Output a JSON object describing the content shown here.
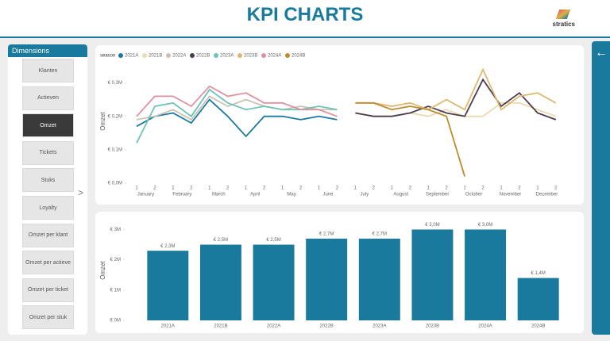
{
  "header": {
    "title": "KPI CHARTS",
    "logo": "stratics"
  },
  "sidebar": {
    "title": "Dimensions",
    "buttons": [
      "Klanten",
      "Actieven",
      "Omzet",
      "Tickets",
      "Stuks",
      "Loyalty",
      "Omzet per klant",
      "Omzet per actieve",
      "Omzet per ticket",
      "Omzet per stuk"
    ],
    "selected": "Omzet"
  },
  "chart_data": [
    {
      "type": "line",
      "legend_title": "season",
      "y_label": "Omzet",
      "categories": [
        "1",
        "2",
        "1",
        "2",
        "1",
        "2",
        "1",
        "2",
        "1",
        "2",
        "1",
        "2",
        "1",
        "2",
        "1",
        "2",
        "1",
        "2",
        "1",
        "2",
        "1",
        "2",
        "1",
        "2"
      ],
      "months": [
        "January",
        "February",
        "March",
        "April",
        "May",
        "June",
        "July",
        "August",
        "September",
        "October",
        "November",
        "December"
      ],
      "ylim": [
        0,
        0.37
      ],
      "yticks": [
        {
          "value": 0,
          "label": "€ 0,0M"
        },
        {
          "value": 0.1,
          "label": "€ 0,1M"
        },
        {
          "value": 0.2,
          "label": "€ 0,2M"
        },
        {
          "value": 0.3,
          "label": "€ 0,3M"
        }
      ],
      "series": [
        {
          "name": "2021A",
          "color": "#1a7a9e",
          "values": [
            0.17,
            0.2,
            0.21,
            0.18,
            0.25,
            0.2,
            0.14,
            0.2,
            0.2,
            0.19,
            0.2,
            0.19,
            null,
            null,
            null,
            null,
            null,
            null,
            null,
            null,
            null,
            null,
            null,
            null
          ]
        },
        {
          "name": "2021B",
          "color": "#e8dcb0",
          "values": [
            null,
            null,
            null,
            null,
            null,
            null,
            null,
            null,
            null,
            null,
            null,
            null,
            0.21,
            0.2,
            0.2,
            0.21,
            0.2,
            0.22,
            0.2,
            0.2,
            0.24,
            0.24,
            0.22,
            0.2
          ]
        },
        {
          "name": "2022A",
          "color": "#cbc2b4",
          "values": [
            0.19,
            0.2,
            0.22,
            0.19,
            0.26,
            0.23,
            0.25,
            0.23,
            0.22,
            0.23,
            0.22,
            0.22,
            null,
            null,
            null,
            null,
            null,
            null,
            null,
            null,
            null,
            null,
            null,
            null
          ]
        },
        {
          "name": "2022B",
          "color": "#4b3c4e",
          "values": [
            null,
            null,
            null,
            null,
            null,
            null,
            null,
            null,
            null,
            null,
            null,
            null,
            0.21,
            0.2,
            0.2,
            0.21,
            0.23,
            0.21,
            0.2,
            0.31,
            0.23,
            0.27,
            0.21,
            0.19
          ]
        },
        {
          "name": "2023A",
          "color": "#6cc3b5",
          "values": [
            0.12,
            0.23,
            0.24,
            0.2,
            0.28,
            0.24,
            0.22,
            0.23,
            0.22,
            0.22,
            0.23,
            0.22,
            null,
            null,
            null,
            null,
            null,
            null,
            null,
            null,
            null,
            null,
            null,
            null
          ]
        },
        {
          "name": "2023B",
          "color": "#ddb86e",
          "values": [
            null,
            null,
            null,
            null,
            null,
            null,
            null,
            null,
            null,
            null,
            null,
            null,
            0.24,
            0.24,
            0.23,
            0.24,
            0.22,
            0.25,
            0.22,
            0.34,
            0.22,
            0.26,
            0.27,
            0.24
          ]
        },
        {
          "name": "2024A",
          "color": "#e091a0",
          "values": [
            0.2,
            0.26,
            0.26,
            0.23,
            0.29,
            0.26,
            0.27,
            0.24,
            0.24,
            0.22,
            0.22,
            0.2,
            null,
            null,
            null,
            null,
            null,
            null,
            null,
            null,
            null,
            null,
            null,
            null
          ]
        },
        {
          "name": "2024B",
          "color": "#c08a30",
          "values": [
            null,
            null,
            null,
            null,
            null,
            null,
            null,
            null,
            null,
            null,
            null,
            null,
            0.24,
            0.24,
            0.22,
            0.23,
            0.22,
            0.2,
            0.02,
            null,
            null,
            null,
            null,
            null
          ]
        }
      ]
    },
    {
      "type": "bar",
      "y_label": "Omzet",
      "color": "#1a7a9e",
      "categories": [
        "2021A",
        "2021B",
        "2022A",
        "2022B",
        "2023A",
        "2023B",
        "2024A",
        "2024B"
      ],
      "values": [
        2.3,
        2.5,
        2.5,
        2.7,
        2.7,
        3.0,
        3.0,
        1.4
      ],
      "value_labels": [
        "€ 2,3M",
        "€ 2,5M",
        "€ 2,5M",
        "€ 2,7M",
        "€ 2,7M",
        "€ 3,0M",
        "€ 3,0M",
        "€ 1,4M"
      ],
      "ylim": [
        0,
        3.3
      ],
      "yticks": [
        {
          "value": 0,
          "label": "€ 0M"
        },
        {
          "value": 1,
          "label": "€ 1M"
        },
        {
          "value": 2,
          "label": "€ 2M"
        },
        {
          "value": 3,
          "label": "€ 3M"
        }
      ]
    }
  ]
}
